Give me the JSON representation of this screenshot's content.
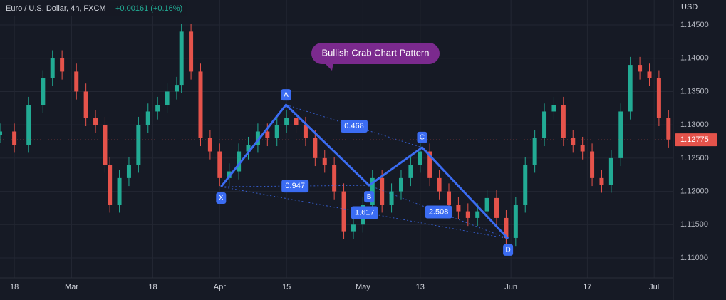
{
  "chart_data": {
    "type": "candlestick",
    "title": "Euro / U.S. Dollar, 4h, FXCM",
    "change": "+0.00161 (+0.16%)",
    "currency": "USD",
    "annotation": "Bullish Crab Chart Pattern",
    "last_price": 1.12775,
    "up_color": "#22ab94",
    "down_color": "#e5534b",
    "pattern_color": "#3b6cf2",
    "xlim": [
      14,
      155
    ],
    "ylim": [
      1.107,
      1.14875
    ],
    "xticks": [
      {
        "value": 17,
        "label": "18"
      },
      {
        "value": 29,
        "label": "Mar"
      },
      {
        "value": 46,
        "label": "18"
      },
      {
        "value": 60,
        "label": "Apr"
      },
      {
        "value": 74,
        "label": "15"
      },
      {
        "value": 90,
        "label": "May"
      },
      {
        "value": 102,
        "label": "13"
      },
      {
        "value": 121,
        "label": "Jun"
      },
      {
        "value": 137,
        "label": "17"
      },
      {
        "value": 151,
        "label": "Jul"
      }
    ],
    "yticks": [
      {
        "value": 1.11,
        "label": "1.11000"
      },
      {
        "value": 1.115,
        "label": "1.11500"
      },
      {
        "value": 1.12,
        "label": "1.12000"
      },
      {
        "value": 1.125,
        "label": "1.12500"
      },
      {
        "value": 1.13,
        "label": "1.13000"
      },
      {
        "value": 1.135,
        "label": "1.13500"
      },
      {
        "value": 1.14,
        "label": "1.14000"
      },
      {
        "value": 1.145,
        "label": "1.14500"
      }
    ],
    "grid": true,
    "x": [
      14,
      17,
      20,
      23,
      25,
      27,
      30,
      32,
      34,
      36,
      37,
      39,
      41,
      43,
      45,
      47,
      49,
      51,
      52,
      54,
      56,
      58,
      60,
      62,
      64,
      66,
      68,
      70,
      72,
      74,
      76,
      78,
      80,
      82,
      84,
      86,
      88,
      90,
      92,
      94,
      96,
      98,
      100,
      102,
      104,
      106,
      108,
      110,
      112,
      114,
      116,
      118,
      120,
      122,
      124,
      126,
      128,
      130,
      132,
      134,
      136,
      138,
      140,
      142,
      144,
      146,
      148,
      150,
      152,
      154
    ],
    "open": [
      1.1285,
      1.129,
      1.127,
      1.133,
      1.137,
      1.14,
      1.138,
      1.135,
      1.131,
      1.13,
      1.124,
      1.118,
      1.122,
      1.124,
      1.13,
      1.132,
      1.133,
      1.135,
      1.136,
      1.144,
      1.138,
      1.128,
      1.126,
      1.122,
      1.123,
      1.126,
      1.127,
      1.129,
      1.128,
      1.13,
      1.131,
      1.13,
      1.128,
      1.125,
      1.124,
      1.12,
      1.114,
      1.115,
      1.118,
      1.122,
      1.118,
      1.12,
      1.122,
      1.124,
      1.126,
      1.122,
      1.12,
      1.118,
      1.117,
      1.116,
      1.117,
      1.119,
      1.116,
      1.113,
      1.118,
      1.124,
      1.128,
      1.132,
      1.133,
      1.128,
      1.127,
      1.126,
      1.122,
      1.121,
      1.125,
      1.132,
      1.139,
      1.138,
      1.137,
      1.131
    ],
    "high": [
      1.1302,
      1.1302,
      1.1342,
      1.1382,
      1.1412,
      1.1412,
      1.1392,
      1.1362,
      1.1322,
      1.1312,
      1.1252,
      1.1232,
      1.1252,
      1.1312,
      1.1332,
      1.1342,
      1.1362,
      1.1372,
      1.1452,
      1.1452,
      1.1392,
      1.1292,
      1.1272,
      1.1242,
      1.1272,
      1.1282,
      1.1302,
      1.1302,
      1.1312,
      1.1322,
      1.1322,
      1.1312,
      1.1292,
      1.1262,
      1.1252,
      1.1212,
      1.1162,
      1.1192,
      1.1232,
      1.1232,
      1.1212,
      1.1232,
      1.1252,
      1.1272,
      1.1272,
      1.1232,
      1.1212,
      1.1192,
      1.1182,
      1.1182,
      1.1202,
      1.1202,
      1.1172,
      1.1192,
      1.1252,
      1.1292,
      1.1332,
      1.1342,
      1.1342,
      1.1292,
      1.1282,
      1.1272,
      1.1232,
      1.1262,
      1.1332,
      1.1402,
      1.1402,
      1.1392,
      1.1382,
      1.1322
    ],
    "low": [
      1.1273,
      1.1258,
      1.1258,
      1.1318,
      1.1358,
      1.1368,
      1.1338,
      1.1298,
      1.1288,
      1.1228,
      1.1168,
      1.1168,
      1.1208,
      1.1228,
      1.1288,
      1.1308,
      1.1318,
      1.1338,
      1.1348,
      1.1368,
      1.1268,
      1.1248,
      1.1208,
      1.1208,
      1.1218,
      1.1248,
      1.1258,
      1.1268,
      1.1268,
      1.1288,
      1.1288,
      1.1268,
      1.1238,
      1.1228,
      1.1188,
      1.1128,
      1.1128,
      1.1138,
      1.1168,
      1.1168,
      1.1168,
      1.1188,
      1.1208,
      1.1228,
      1.1208,
      1.1188,
      1.1168,
      1.1158,
      1.1148,
      1.1148,
      1.1158,
      1.1148,
      1.1118,
      1.1118,
      1.1168,
      1.1228,
      1.1268,
      1.1308,
      1.1268,
      1.1258,
      1.1248,
      1.1208,
      1.1198,
      1.1198,
      1.1238,
      1.1308,
      1.1368,
      1.1358,
      1.1298,
      1.1266
    ],
    "close": [
      1.129,
      1.127,
      1.133,
      1.137,
      1.14,
      1.138,
      1.135,
      1.131,
      1.13,
      1.124,
      1.118,
      1.122,
      1.124,
      1.13,
      1.132,
      1.133,
      1.135,
      1.136,
      1.144,
      1.138,
      1.128,
      1.126,
      1.122,
      1.123,
      1.126,
      1.127,
      1.129,
      1.128,
      1.13,
      1.131,
      1.13,
      1.128,
      1.125,
      1.124,
      1.12,
      1.114,
      1.115,
      1.118,
      1.122,
      1.118,
      1.12,
      1.122,
      1.124,
      1.126,
      1.122,
      1.12,
      1.118,
      1.117,
      1.116,
      1.117,
      1.119,
      1.116,
      1.113,
      1.118,
      1.124,
      1.128,
      1.132,
      1.133,
      1.128,
      1.127,
      1.126,
      1.122,
      1.121,
      1.125,
      1.132,
      1.139,
      1.138,
      1.137,
      1.131,
      1.1278
    ],
    "pattern": {
      "labels": [
        "X",
        "A",
        "B",
        "C",
        "D"
      ],
      "x": [
        60.3,
        73.9,
        91.3,
        102.4,
        120.4
      ],
      "y": [
        1.1207,
        1.133,
        1.1209,
        1.1266,
        1.1129
      ]
    },
    "ratios": {
      "values": [
        0.468,
        0.947,
        1.617,
        2.508
      ],
      "from": [
        "A",
        "X",
        "X",
        "B"
      ],
      "to": [
        "C",
        "B",
        "D",
        "D"
      ]
    }
  }
}
